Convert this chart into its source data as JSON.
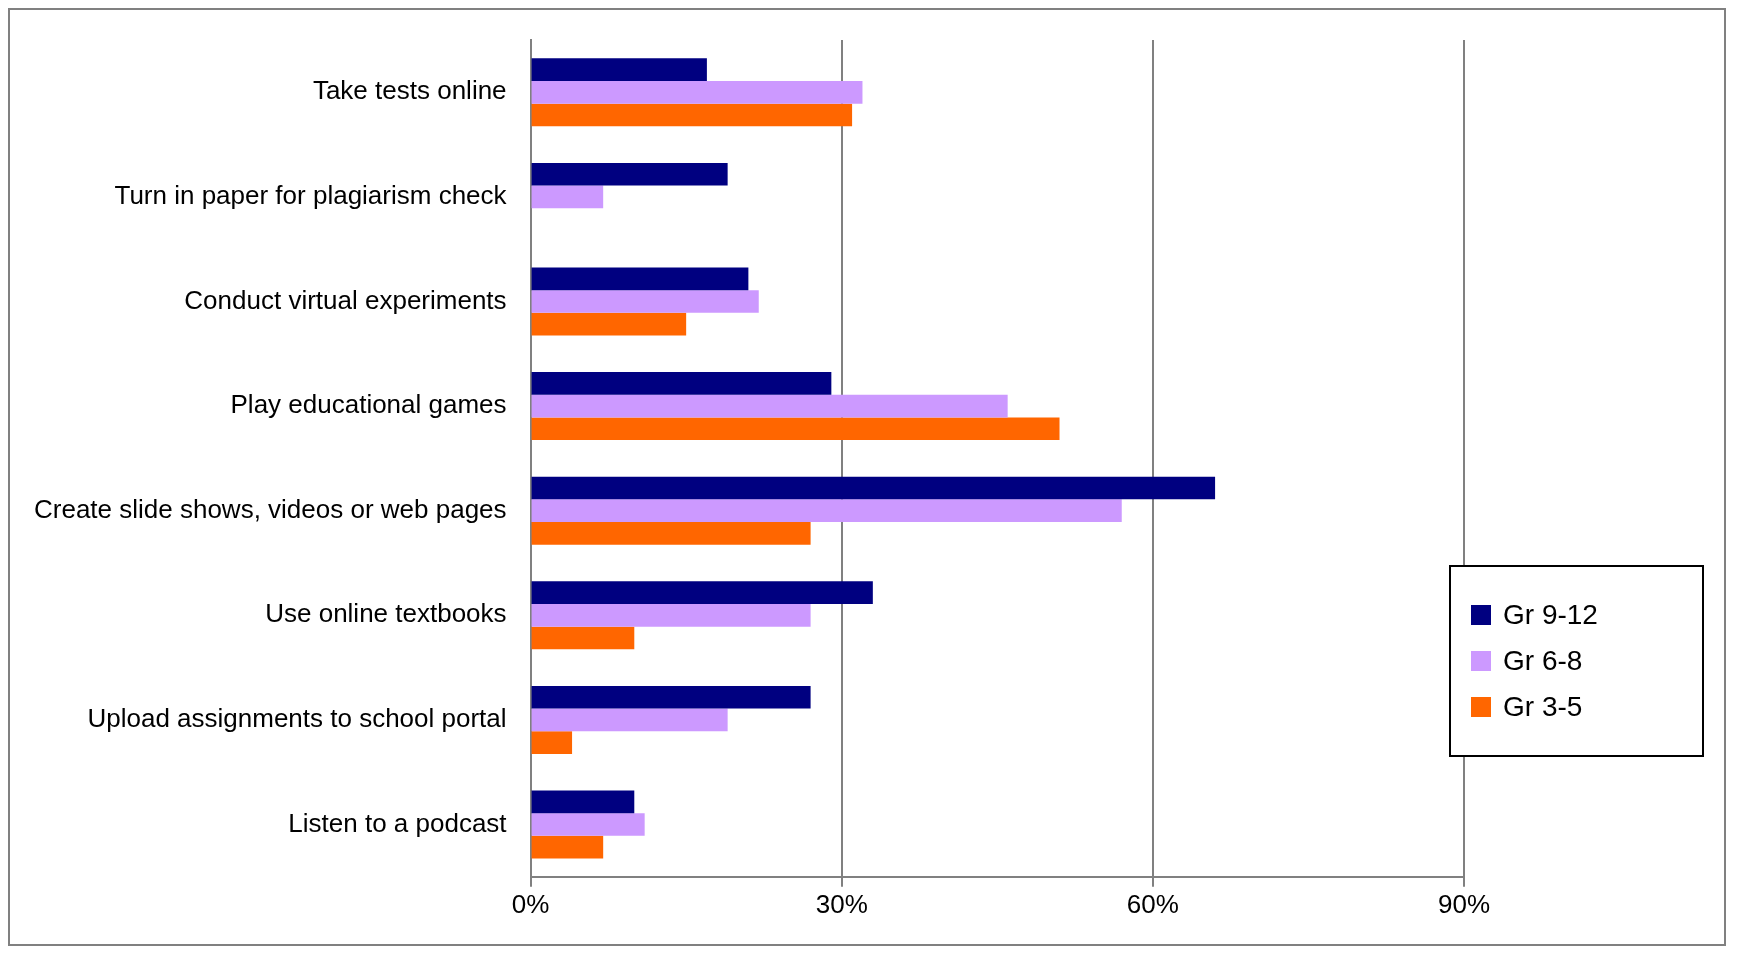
{
  "chart_data": {
    "type": "bar",
    "orientation": "horizontal",
    "categories": [
      "Take tests online",
      "Turn in paper for plagiarism check",
      "Conduct virtual experiments",
      "Play educational games",
      "Create slide shows, videos or web pages",
      "Use online textbooks",
      "Upload assignments to school portal",
      "Listen to a podcast"
    ],
    "series": [
      {
        "name": "Gr 9-12",
        "color": "#000080",
        "values": [
          17,
          19,
          21,
          29,
          66,
          33,
          27,
          10
        ]
      },
      {
        "name": "Gr 6-8",
        "color": "#cc99ff",
        "values": [
          32,
          7,
          22,
          46,
          57,
          27,
          19,
          11
        ]
      },
      {
        "name": "Gr 3-5",
        "color": "#ff6600",
        "values": [
          31,
          null,
          15,
          51,
          27,
          10,
          4,
          7
        ]
      }
    ],
    "xlim": [
      0,
      90
    ],
    "xticks": [
      {
        "value": 0,
        "label": "0%"
      },
      {
        "value": 30,
        "label": "30%"
      },
      {
        "value": 60,
        "label": "60%"
      },
      {
        "value": 90,
        "label": "90%"
      }
    ],
    "grid": "x",
    "legend": "right"
  }
}
